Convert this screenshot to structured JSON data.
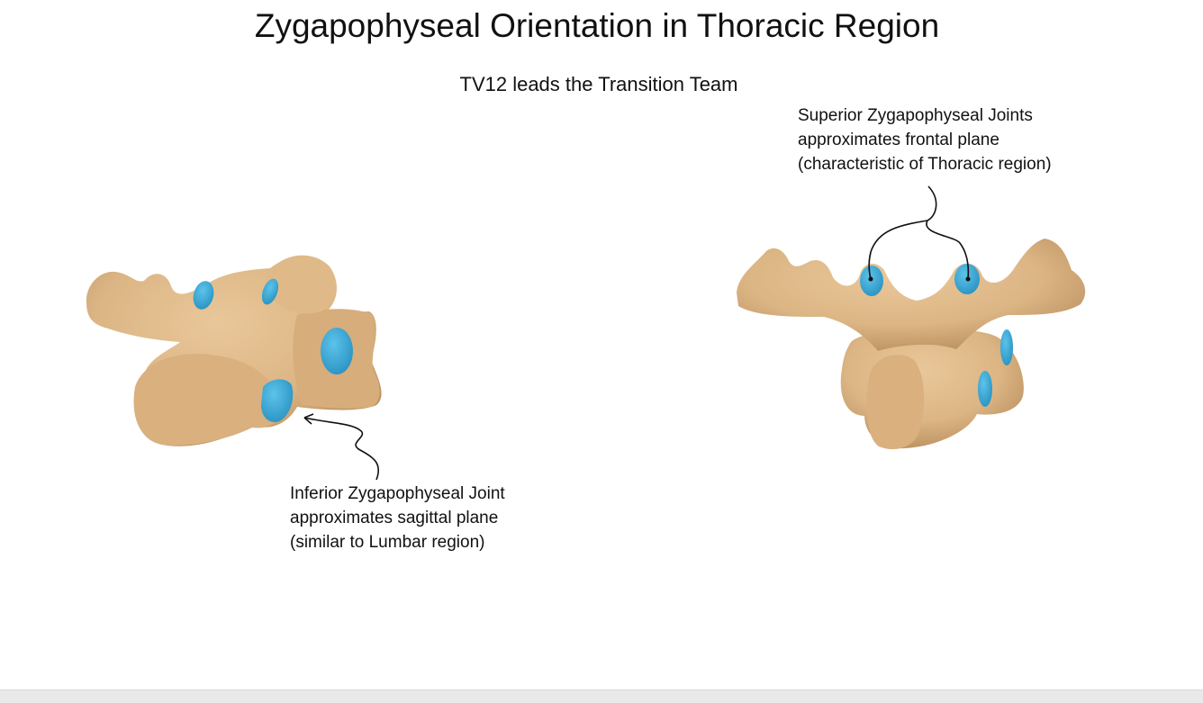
{
  "slide": {
    "title": "Zygapophyseal Orientation in Thoracic Region",
    "subtitle": "TV12 leads the Transition Team"
  },
  "callouts": {
    "superior": {
      "lines": [
        "Superior Zygapophyseal Joints",
        "approximates frontal plane",
        "(characteristic of Thoracic region)"
      ]
    },
    "inferior": {
      "lines": [
        "Inferior Zygapophyseal Joint",
        "approximates sagittal plane",
        "(similar to Lumbar region)"
      ]
    }
  },
  "colors": {
    "bone": "#dcb584",
    "bone_shade": "#b88d5d",
    "joint_facet": "#3aaad8",
    "background": "#ffffff"
  },
  "icons": {
    "left_model": "vertebra-side-view",
    "right_model": "vertebra-posterior-view"
  }
}
